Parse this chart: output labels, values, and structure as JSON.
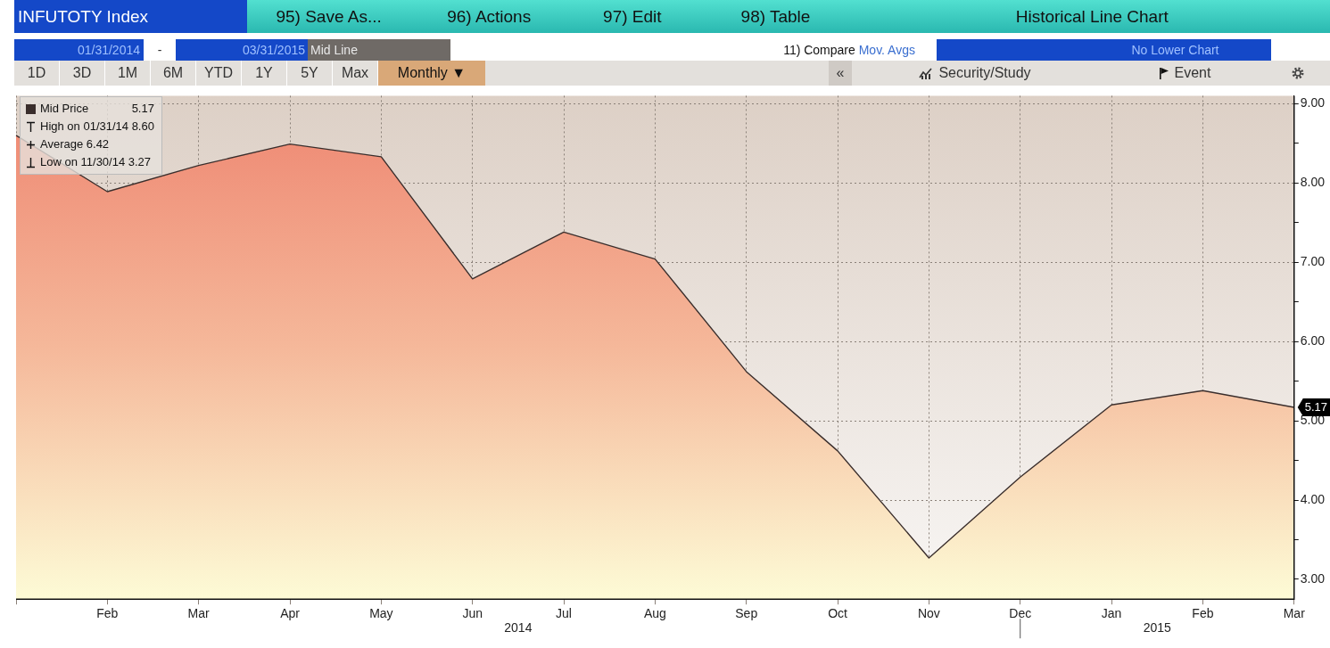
{
  "chart_data": {
    "type": "area",
    "title": "INFUTOTY Index",
    "subtitle": "Historical Line Chart",
    "categories": [
      null,
      "Feb",
      "Mar",
      "Apr",
      "May",
      "Jun",
      "Jul",
      "Aug",
      "Sep",
      "Oct",
      "Nov",
      "Dec",
      "Jan",
      "Feb",
      "Mar"
    ],
    "series": [
      {
        "name": "Mid Price",
        "color": "#3a2e2c",
        "values": [
          8.6,
          7.89,
          8.22,
          8.49,
          8.33,
          6.79,
          7.38,
          7.04,
          5.62,
          4.62,
          3.27,
          4.29,
          5.2,
          5.38,
          5.17
        ]
      }
    ],
    "ylim": [
      2.75,
      9.1
    ],
    "yticks": [
      {
        "value": 3,
        "label": "3.00"
      },
      {
        "value": 3.5,
        "label": null
      },
      {
        "value": 4,
        "label": "4.00"
      },
      {
        "value": 4.5,
        "label": null
      },
      {
        "value": 5,
        "label": "5.00"
      },
      {
        "value": 5.5,
        "label": null
      },
      {
        "value": 6,
        "label": "6.00"
      },
      {
        "value": 6.5,
        "label": null
      },
      {
        "value": 7,
        "label": "7.00"
      },
      {
        "value": 7.5,
        "label": null
      },
      {
        "value": 8,
        "label": "8.00"
      },
      {
        "value": 8.5,
        "label": null
      },
      {
        "value": 9,
        "label": "9.00"
      }
    ],
    "grid": true,
    "legend": "top left",
    "line_style": "solid",
    "annotations": [
      "95) Save As...",
      "96) Actions",
      "97) Edit",
      "98) Table",
      "01/31/2014",
      "-",
      "03/31/2015",
      "Mid Line",
      "11) Compare",
      "Mov. Avgs",
      "No Lower Chart",
      "1D",
      "3D",
      "1M",
      "6M",
      "YTD",
      "1Y",
      "5Y",
      "Max",
      "Monthly ▼",
      "«",
      "Security/Study",
      "Event",
      "High on 01/31/14 8.60",
      "Average 6.42",
      "Low on 11/30/14 3.27",
      "2014",
      "2015",
      "5.17",
      "5.17"
    ]
  }
}
